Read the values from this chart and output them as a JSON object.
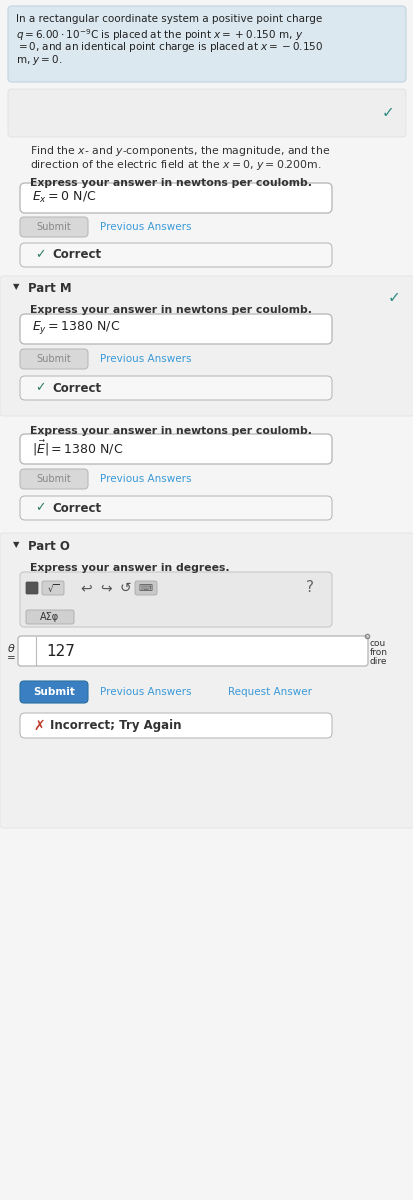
{
  "bg_color": "#f5f5f5",
  "header_bg": "#dce8f0",
  "header_border": "#c0d4e0",
  "section_bg": "#f0f0f0",
  "section_border": "#e0e0e0",
  "white": "#ffffff",
  "light_gray": "#f7f7f7",
  "input_border": "#bbbbbb",
  "submit_gray_bg": "#d8d8d8",
  "submit_gray_text": "#888888",
  "submit_blue_bg": "#3a7fc1",
  "submit_blue_border": "#2a6fa1",
  "link_color": "#3a9ad9",
  "teal": "#2e8b84",
  "green": "#2e7d5e",
  "red": "#c0392b",
  "text_dark": "#222222",
  "text_mid": "#333333",
  "toolbar_bg": "#e8e8e8",
  "toolbar_border": "#c8c8c8",
  "header_lines": [
    "In a rectangular coordinate system a positive point charge",
    "$q = 6.00 \\cdot 10^{-9}\\mathrm{C}$ is placed at the point $x = +0.150$ m, $y$",
    "$= 0$, and an identical point charge is placed at $x = -0.150$",
    "m, $y = 0$."
  ],
  "find_lines": [
    "Find the $x$- and $y$-components, the magnitude, and the",
    "direction of the electric field at the $x = 0$, $y = 0.200$m."
  ],
  "express_nc": "Express your answer in newtons per coulomb.",
  "express_deg": "Express your answer in degrees.",
  "answer1": "$E_x = 0$ N/C",
  "answer2": "$E_y = 1380$ N/C",
  "answer3": "$|\\vec{E}| = 1380$ N/C",
  "answer4": "127",
  "part_m": "Part M",
  "part_o": "Part O",
  "submit": "Submit",
  "prev_answers": "Previous Answers",
  "request_answer": "Request Answer",
  "correct": "Correct",
  "incorrect": "Incorrect; Try Again"
}
